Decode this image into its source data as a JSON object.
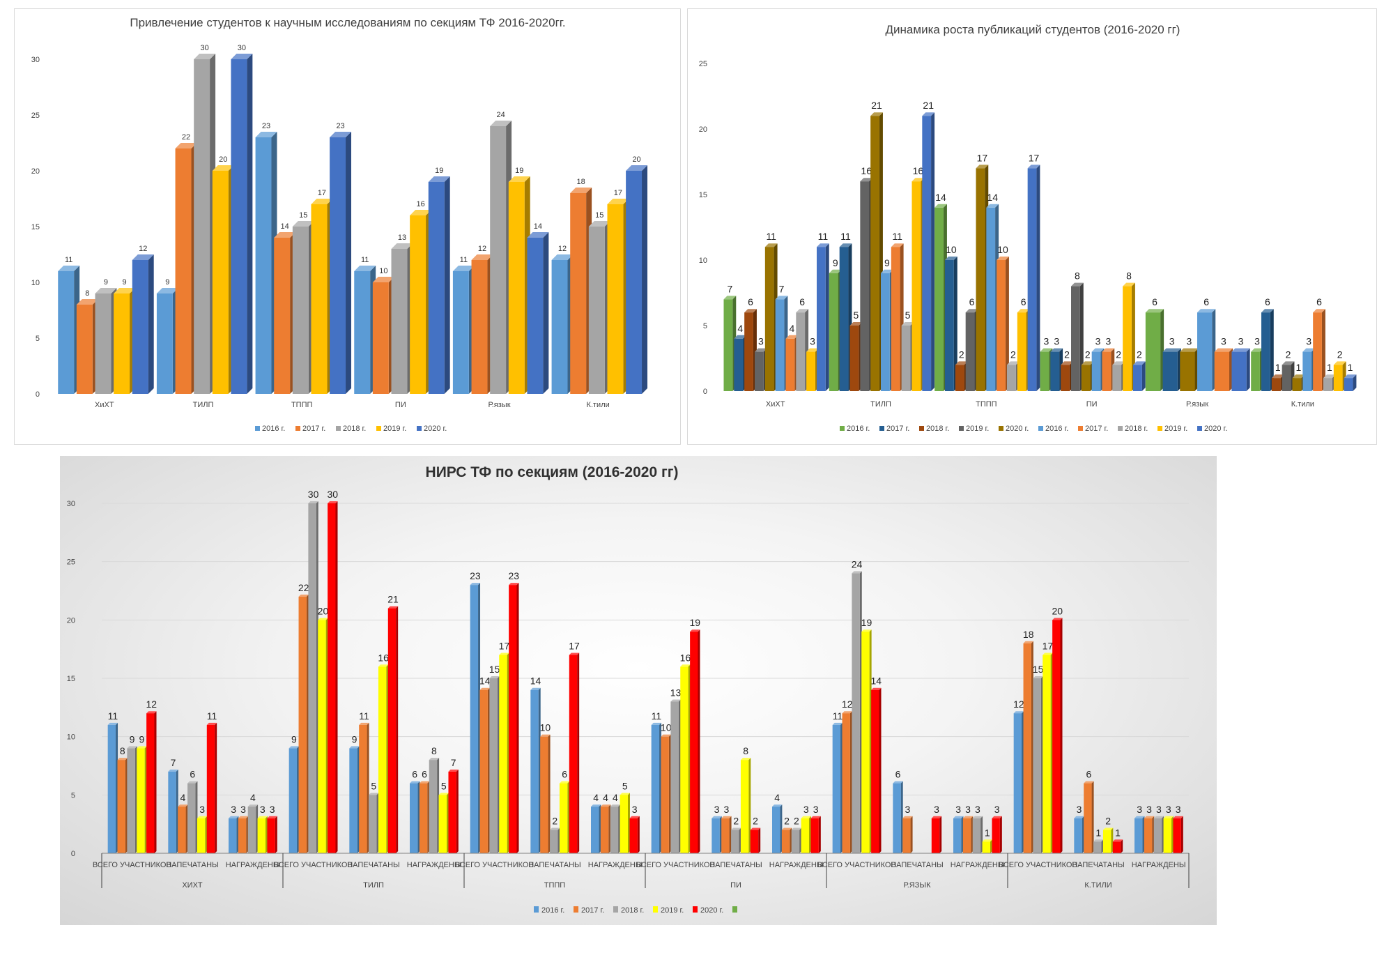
{
  "charts": {
    "c1": {
      "title": "Привлечение  студентов к научным исследованиям по секциям ТФ 2016-2020гг.",
      "legend": [
        "2016 г.",
        "2017 г.",
        "2018 г.",
        "2019 г.",
        "2020 г."
      ]
    },
    "c2": {
      "title": "Динамика роста публикаций студентов  (2016-2020 гг)",
      "legend": [
        "2016 г.",
        "2017 г.",
        "2018 г.",
        "2019 г.",
        "2020 г.",
        "2016 г.",
        "2017 г.",
        "2018 г.",
        "2019 г.",
        "2020 г."
      ]
    },
    "c3": {
      "title": "НИРС ТФ по секциям (2016-2020 гг)",
      "legend": [
        "2016 г.",
        "2017 г.",
        "2018 г.",
        "2019 г.",
        "2020 г.",
        ""
      ]
    }
  },
  "chart_data": [
    {
      "type": "bar",
      "title": "Привлечение  студентов к научным исследованиям по секциям ТФ 2016-2020гг.",
      "categories": [
        "ХиХТ",
        "ТИЛП",
        "ТППП",
        "ПИ",
        "Р.язык",
        "К.тили"
      ],
      "ylim": [
        0,
        30
      ],
      "yticks": [
        0,
        5,
        10,
        15,
        20,
        25,
        30
      ],
      "grid": false,
      "legend_position": "bottom",
      "colors": [
        "#5b9bd5",
        "#ed7d31",
        "#a5a5a5",
        "#ffc000",
        "#4472c4"
      ],
      "series": [
        {
          "name": "2016 г.",
          "values": [
            11,
            9,
            23,
            11,
            11,
            12
          ]
        },
        {
          "name": "2017 г.",
          "values": [
            8,
            22,
            14,
            10,
            12,
            18
          ]
        },
        {
          "name": "2018 г.",
          "values": [
            9,
            30,
            15,
            13,
            24,
            15
          ]
        },
        {
          "name": "2019 г.",
          "values": [
            9,
            20,
            17,
            16,
            19,
            17
          ]
        },
        {
          "name": "2020 г.",
          "values": [
            12,
            30,
            23,
            19,
            14,
            20
          ]
        }
      ]
    },
    {
      "type": "bar",
      "title": "Динамика роста публикаций студентов  (2016-2020 гг)",
      "categories": [
        "ХиХТ",
        "ТИЛП",
        "ТППП",
        "ПИ",
        "Р.язык",
        "К.тили"
      ],
      "ylim": [
        0,
        25
      ],
      "yticks": [
        0,
        5,
        10,
        15,
        20,
        25
      ],
      "grid": false,
      "legend_position": "bottom",
      "colors": [
        "#70ad47",
        "#255e91",
        "#9e480e",
        "#636363",
        "#997300",
        "#5b9bd5",
        "#ed7d31",
        "#a5a5a5",
        "#ffc000",
        "#4472c4"
      ],
      "series": [
        {
          "name": "2016 г.",
          "values": [
            7,
            9,
            14,
            3,
            6,
            3
          ]
        },
        {
          "name": "2017 г.",
          "values": [
            4,
            11,
            10,
            3,
            3,
            6
          ]
        },
        {
          "name": "2018 г.",
          "values": [
            6,
            5,
            2,
            2,
            null,
            1
          ]
        },
        {
          "name": "2019 г.",
          "values": [
            3,
            16,
            6,
            8,
            null,
            2
          ]
        },
        {
          "name": "2020 г.",
          "values": [
            11,
            21,
            17,
            2,
            3,
            1
          ]
        },
        {
          "name": "2016 г.",
          "values": [
            7,
            9,
            14,
            3,
            6,
            3
          ]
        },
        {
          "name": "2017 г.",
          "values": [
            4,
            11,
            10,
            3,
            3,
            6
          ]
        },
        {
          "name": "2018 г.",
          "values": [
            6,
            5,
            2,
            2,
            null,
            1
          ]
        },
        {
          "name": "2019 г.",
          "values": [
            3,
            16,
            6,
            8,
            null,
            2
          ]
        },
        {
          "name": "2020 г.",
          "values": [
            11,
            21,
            17,
            2,
            3,
            1
          ]
        }
      ]
    },
    {
      "type": "bar",
      "title": "НИРС ТФ по секциям (2016-2020 гг)",
      "groups": [
        "ХИХТ",
        "ТИЛП",
        "ТППП",
        "ПИ",
        "Р.ЯЗЫК",
        "К.ТИЛИ"
      ],
      "subcategories": [
        "ВСЕГО УЧАСТНИКОВ",
        "НАПЕЧАТАНЫ",
        "НАГРАЖДЕНЫ"
      ],
      "ylim": [
        0,
        30
      ],
      "yticks": [
        0,
        5,
        10,
        15,
        20,
        25,
        30
      ],
      "grid": true,
      "legend_position": "bottom",
      "colors": [
        "#5b9bd5",
        "#ed7d31",
        "#a5a5a5",
        "#ffff00",
        "#ff0000",
        "#70ad47"
      ],
      "series": [
        {
          "name": "2016 г.",
          "values": [
            11,
            7,
            3,
            9,
            9,
            6,
            23,
            14,
            4,
            11,
            3,
            4,
            11,
            6,
            3,
            12,
            3,
            3
          ]
        },
        {
          "name": "2017 г.",
          "values": [
            8,
            4,
            3,
            22,
            11,
            6,
            14,
            10,
            4,
            10,
            3,
            2,
            12,
            3,
            3,
            18,
            6,
            3
          ]
        },
        {
          "name": "2018 г.",
          "values": [
            9,
            6,
            4,
            30,
            5,
            8,
            15,
            2,
            4,
            13,
            2,
            2,
            24,
            null,
            3,
            15,
            1,
            3
          ]
        },
        {
          "name": "2019 г.",
          "values": [
            9,
            3,
            3,
            20,
            16,
            5,
            17,
            6,
            5,
            16,
            8,
            3,
            19,
            null,
            1,
            17,
            2,
            3
          ]
        },
        {
          "name": "2020 г.",
          "values": [
            12,
            11,
            3,
            30,
            21,
            7,
            23,
            17,
            3,
            19,
            2,
            3,
            14,
            3,
            3,
            20,
            1,
            3
          ]
        }
      ]
    }
  ]
}
